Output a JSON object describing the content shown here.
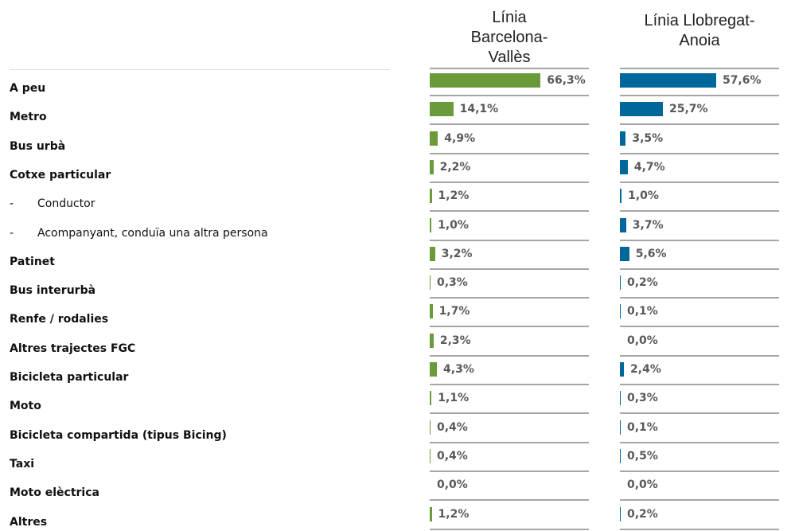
{
  "chart_data": {
    "type": "bar",
    "orientation": "horizontal",
    "categories": [
      "A peu",
      "Metro",
      "Bus urbà",
      "Cotxe particular",
      "-\tConductor",
      "-\tAcompanyant, conduïa una altra persona",
      "Patinet",
      "Bus interurbà",
      "Renfe / rodalies",
      "Altres trajectes FGC",
      "Bicicleta particular",
      "Moto",
      "Bicicleta compartida (tipus Bicing)",
      "Taxi",
      "Moto elèctrica",
      "Altres"
    ],
    "xlim": [
      0,
      100
    ],
    "series": [
      {
        "name": "Línia Barcelona-Vallès",
        "color": "#6b9a3a",
        "values": [
          66.3,
          14.1,
          4.9,
          2.2,
          1.2,
          1.0,
          3.2,
          0.3,
          1.7,
          2.3,
          4.3,
          1.1,
          0.4,
          0.4,
          0.0,
          1.2
        ],
        "value_labels": [
          "66,3%",
          "14,1%",
          "4,9%",
          "2,2%",
          "1,2%",
          "1,0%",
          "3,2%",
          "0,3%",
          "1,7%",
          "2,3%",
          "4,3%",
          "1,1%",
          "0,4%",
          "0,4%",
          "0,0%",
          "1,2%"
        ]
      },
      {
        "name": "Línia Llobregat-Anoia",
        "color": "#00679a",
        "values": [
          57.6,
          25.7,
          3.5,
          4.7,
          1.0,
          3.7,
          5.6,
          0.2,
          0.1,
          0.0,
          2.4,
          0.3,
          0.1,
          0.5,
          0.0,
          0.2
        ],
        "value_labels": [
          "57,6%",
          "25,7%",
          "3,5%",
          "4,7%",
          "1,0%",
          "3,7%",
          "5,6%",
          "0,2%",
          "0,1%",
          "0,0%",
          "2,4%",
          "0,3%",
          "0,1%",
          "0,5%",
          "0,0%",
          "0,2%"
        ]
      }
    ]
  }
}
